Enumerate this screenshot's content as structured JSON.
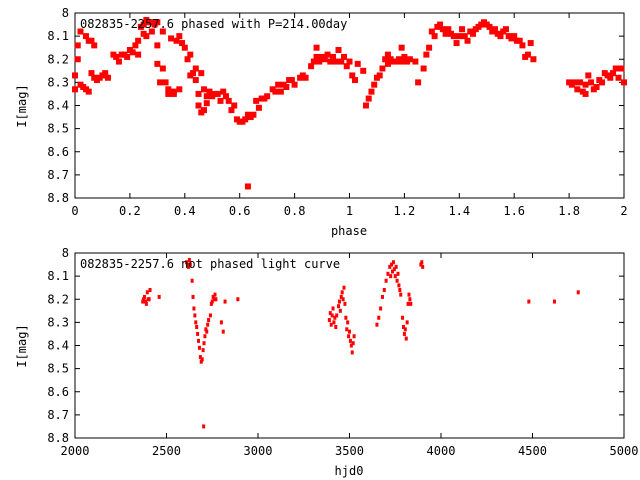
{
  "chart_data": [
    {
      "type": "scatter",
      "title": "082835-2257.6 phased with P=214.00day",
      "xlabel": "phase",
      "ylabel": "I[mag]",
      "xlim": [
        0,
        2
      ],
      "ylim": [
        8.8,
        8.0
      ],
      "y_inverted": true,
      "xticks": [
        "0",
        "0.2",
        "0.4",
        "0.6",
        "0.8",
        "1",
        "1.2",
        "1.4",
        "1.6",
        "1.8",
        "2"
      ],
      "xtick_values": [
        0,
        0.2,
        0.4,
        0.6,
        0.8,
        1.0,
        1.2,
        1.4,
        1.6,
        1.8,
        2.0
      ],
      "yticks": [
        "8",
        "8.1",
        "8.2",
        "8.3",
        "8.4",
        "8.5",
        "8.6",
        "8.7",
        "8.8"
      ],
      "ytick_values": [
        8.0,
        8.1,
        8.2,
        8.3,
        8.4,
        8.5,
        8.6,
        8.7,
        8.8
      ],
      "marker_color": "#ff0000",
      "marker": "filled-square",
      "points": [
        [
          0.0,
          8.27
        ],
        [
          0.0,
          8.33
        ],
        [
          0.01,
          8.2
        ],
        [
          0.01,
          8.14
        ],
        [
          0.02,
          8.08
        ],
        [
          0.02,
          8.31
        ],
        [
          0.03,
          8.32
        ],
        [
          0.04,
          8.1
        ],
        [
          0.04,
          8.33
        ],
        [
          0.05,
          8.12
        ],
        [
          0.05,
          8.34
        ],
        [
          0.06,
          8.12
        ],
        [
          0.06,
          8.26
        ],
        [
          0.07,
          8.14
        ],
        [
          0.07,
          8.28
        ],
        [
          0.08,
          8.29
        ],
        [
          0.09,
          8.28
        ],
        [
          0.1,
          8.27
        ],
        [
          0.11,
          8.26
        ],
        [
          0.12,
          8.28
        ],
        [
          0.14,
          8.18
        ],
        [
          0.15,
          8.19
        ],
        [
          0.16,
          8.21
        ],
        [
          0.17,
          8.18
        ],
        [
          0.18,
          8.18
        ],
        [
          0.19,
          8.19
        ],
        [
          0.2,
          8.16
        ],
        [
          0.21,
          8.17
        ],
        [
          0.22,
          8.14
        ],
        [
          0.23,
          8.12
        ],
        [
          0.23,
          8.18
        ],
        [
          0.24,
          8.06
        ],
        [
          0.25,
          8.05
        ],
        [
          0.25,
          8.09
        ],
        [
          0.26,
          8.03
        ],
        [
          0.26,
          8.1
        ],
        [
          0.27,
          8.04
        ],
        [
          0.28,
          8.04
        ],
        [
          0.28,
          8.08
        ],
        [
          0.29,
          8.05
        ],
        [
          0.3,
          8.04
        ],
        [
          0.3,
          8.14
        ],
        [
          0.3,
          8.22
        ],
        [
          0.31,
          8.3
        ],
        [
          0.32,
          8.24
        ],
        [
          0.32,
          8.08
        ],
        [
          0.33,
          8.3
        ],
        [
          0.34,
          8.33
        ],
        [
          0.34,
          8.35
        ],
        [
          0.35,
          8.11
        ],
        [
          0.36,
          8.35
        ],
        [
          0.36,
          8.34
        ],
        [
          0.37,
          8.12
        ],
        [
          0.38,
          8.1
        ],
        [
          0.38,
          8.33
        ],
        [
          0.39,
          8.13
        ],
        [
          0.4,
          8.15
        ],
        [
          0.41,
          8.2
        ],
        [
          0.42,
          8.27
        ],
        [
          0.42,
          8.18
        ],
        [
          0.43,
          8.26
        ],
        [
          0.44,
          8.24
        ],
        [
          0.44,
          8.29
        ],
        [
          0.45,
          8.35
        ],
        [
          0.45,
          8.4
        ],
        [
          0.46,
          8.43
        ],
        [
          0.46,
          8.26
        ],
        [
          0.47,
          8.33
        ],
        [
          0.47,
          8.42
        ],
        [
          0.48,
          8.36
        ],
        [
          0.48,
          8.39
        ],
        [
          0.49,
          8.34
        ],
        [
          0.5,
          8.36
        ],
        [
          0.51,
          8.35
        ],
        [
          0.52,
          8.35
        ],
        [
          0.53,
          8.38
        ],
        [
          0.54,
          8.34
        ],
        [
          0.55,
          8.36
        ],
        [
          0.56,
          8.38
        ],
        [
          0.57,
          8.42
        ],
        [
          0.58,
          8.4
        ],
        [
          0.59,
          8.46
        ],
        [
          0.6,
          8.47
        ],
        [
          0.61,
          8.47
        ],
        [
          0.62,
          8.46
        ],
        [
          0.63,
          8.44
        ],
        [
          0.63,
          8.75
        ],
        [
          0.64,
          8.45
        ],
        [
          0.65,
          8.44
        ],
        [
          0.66,
          8.38
        ],
        [
          0.67,
          8.41
        ],
        [
          0.68,
          8.37
        ],
        [
          0.69,
          8.37
        ],
        [
          0.7,
          8.36
        ],
        [
          0.72,
          8.33
        ],
        [
          0.73,
          8.34
        ],
        [
          0.74,
          8.31
        ],
        [
          0.75,
          8.34
        ],
        [
          0.76,
          8.31
        ],
        [
          0.77,
          8.32
        ],
        [
          0.78,
          8.29
        ],
        [
          0.79,
          8.29
        ],
        [
          0.8,
          8.31
        ],
        [
          0.82,
          8.28
        ],
        [
          0.83,
          8.27
        ],
        [
          0.84,
          8.28
        ],
        [
          0.86,
          8.23
        ],
        [
          0.87,
          8.21
        ],
        [
          0.88,
          8.19
        ],
        [
          0.88,
          8.15
        ],
        [
          0.89,
          8.21
        ],
        [
          0.9,
          8.19
        ],
        [
          0.91,
          8.2
        ],
        [
          0.92,
          8.18
        ],
        [
          0.93,
          8.21
        ],
        [
          0.94,
          8.19
        ],
        [
          0.95,
          8.21
        ],
        [
          0.96,
          8.16
        ],
        [
          0.97,
          8.21
        ],
        [
          0.98,
          8.19
        ],
        [
          0.99,
          8.23
        ],
        [
          1.0,
          8.21
        ],
        [
          1.01,
          8.27
        ],
        [
          1.02,
          8.29
        ],
        [
          1.03,
          8.22
        ],
        [
          1.05,
          8.25
        ],
        [
          1.06,
          8.4
        ],
        [
          1.07,
          8.37
        ],
        [
          1.08,
          8.34
        ],
        [
          1.09,
          8.31
        ],
        [
          1.1,
          8.28
        ],
        [
          1.11,
          8.27
        ],
        [
          1.12,
          8.24
        ],
        [
          1.13,
          8.2
        ],
        [
          1.14,
          8.18
        ],
        [
          1.14,
          8.22
        ],
        [
          1.15,
          8.2
        ],
        [
          1.16,
          8.21
        ],
        [
          1.17,
          8.21
        ],
        [
          1.18,
          8.2
        ],
        [
          1.19,
          8.21
        ],
        [
          1.19,
          8.15
        ],
        [
          1.2,
          8.19
        ],
        [
          1.21,
          8.21
        ],
        [
          1.22,
          8.2
        ],
        [
          1.24,
          8.21
        ],
        [
          1.25,
          8.3
        ],
        [
          1.27,
          8.24
        ],
        [
          1.28,
          8.18
        ],
        [
          1.29,
          8.15
        ],
        [
          1.3,
          8.08
        ],
        [
          1.31,
          8.1
        ],
        [
          1.32,
          8.06
        ],
        [
          1.33,
          8.05
        ],
        [
          1.34,
          8.07
        ],
        [
          1.35,
          8.09
        ],
        [
          1.36,
          8.07
        ],
        [
          1.37,
          8.09
        ],
        [
          1.38,
          8.1
        ],
        [
          1.39,
          8.13
        ],
        [
          1.4,
          8.1
        ],
        [
          1.41,
          8.07
        ],
        [
          1.42,
          8.1
        ],
        [
          1.43,
          8.12
        ],
        [
          1.44,
          8.08
        ],
        [
          1.45,
          8.09
        ],
        [
          1.46,
          8.07
        ],
        [
          1.47,
          8.06
        ],
        [
          1.48,
          8.05
        ],
        [
          1.49,
          8.04
        ],
        [
          1.5,
          8.05
        ],
        [
          1.51,
          8.06
        ],
        [
          1.52,
          8.08
        ],
        [
          1.53,
          8.07
        ],
        [
          1.54,
          8.09
        ],
        [
          1.55,
          8.1
        ],
        [
          1.56,
          8.08
        ],
        [
          1.57,
          8.07
        ],
        [
          1.58,
          8.1
        ],
        [
          1.59,
          8.11
        ],
        [
          1.6,
          8.1
        ],
        [
          1.61,
          8.12
        ],
        [
          1.62,
          8.12
        ],
        [
          1.63,
          8.14
        ],
        [
          1.64,
          8.19
        ],
        [
          1.65,
          8.18
        ],
        [
          1.66,
          8.13
        ],
        [
          1.67,
          8.2
        ],
        [
          1.8,
          8.3
        ],
        [
          1.81,
          8.31
        ],
        [
          1.82,
          8.3
        ],
        [
          1.83,
          8.33
        ],
        [
          1.84,
          8.3
        ],
        [
          1.85,
          8.34
        ],
        [
          1.86,
          8.31
        ],
        [
          1.86,
          8.35
        ],
        [
          1.87,
          8.27
        ],
        [
          1.88,
          8.3
        ],
        [
          1.89,
          8.33
        ],
        [
          1.9,
          8.32
        ],
        [
          1.91,
          8.29
        ],
        [
          1.92,
          8.3
        ],
        [
          1.93,
          8.26
        ],
        [
          1.94,
          8.27
        ],
        [
          1.95,
          8.28
        ],
        [
          1.96,
          8.26
        ],
        [
          1.97,
          8.24
        ],
        [
          1.98,
          8.28
        ],
        [
          1.99,
          8.24
        ],
        [
          2.0,
          8.3
        ]
      ]
    },
    {
      "type": "scatter",
      "title": "082835-2257.6 not phased light curve",
      "xlabel": "hjd0",
      "ylabel": "I[mag]",
      "xlim": [
        2000,
        5000
      ],
      "ylim": [
        8.8,
        8.0
      ],
      "y_inverted": true,
      "xticks": [
        "2000",
        "2500",
        "3000",
        "3500",
        "4000",
        "4500",
        "5000"
      ],
      "xtick_values": [
        2000,
        2500,
        3000,
        3500,
        4000,
        4500,
        5000
      ],
      "yticks": [
        "8",
        "8.1",
        "8.2",
        "8.3",
        "8.4",
        "8.5",
        "8.6",
        "8.7",
        "8.8"
      ],
      "ytick_values": [
        8.0,
        8.1,
        8.2,
        8.3,
        8.4,
        8.5,
        8.6,
        8.7,
        8.8
      ],
      "marker_color": "#ff0000",
      "marker": "small-dot",
      "points": [
        [
          2370,
          8.21
        ],
        [
          2375,
          8.2
        ],
        [
          2380,
          8.19
        ],
        [
          2385,
          8.21
        ],
        [
          2390,
          8.22
        ],
        [
          2395,
          8.17
        ],
        [
          2400,
          8.2
        ],
        [
          2405,
          8.2
        ],
        [
          2410,
          8.16
        ],
        [
          2460,
          8.19
        ],
        [
          2610,
          8.04
        ],
        [
          2615,
          8.05
        ],
        [
          2620,
          8.06
        ],
        [
          2625,
          8.03
        ],
        [
          2630,
          8.05
        ],
        [
          2640,
          8.12
        ],
        [
          2645,
          8.19
        ],
        [
          2650,
          8.24
        ],
        [
          2655,
          8.27
        ],
        [
          2660,
          8.3
        ],
        [
          2665,
          8.32
        ],
        [
          2670,
          8.35
        ],
        [
          2675,
          8.38
        ],
        [
          2680,
          8.41
        ],
        [
          2685,
          8.45
        ],
        [
          2690,
          8.47
        ],
        [
          2695,
          8.46
        ],
        [
          2700,
          8.42
        ],
        [
          2703,
          8.75
        ],
        [
          2705,
          8.39
        ],
        [
          2710,
          8.36
        ],
        [
          2715,
          8.33
        ],
        [
          2720,
          8.34
        ],
        [
          2725,
          8.31
        ],
        [
          2730,
          8.29
        ],
        [
          2740,
          8.27
        ],
        [
          2745,
          8.22
        ],
        [
          2750,
          8.21
        ],
        [
          2755,
          8.19
        ],
        [
          2760,
          8.2
        ],
        [
          2765,
          8.18
        ],
        [
          2770,
          8.2
        ],
        [
          2800,
          8.3
        ],
        [
          2810,
          8.34
        ],
        [
          2820,
          8.21
        ],
        [
          2890,
          8.2
        ],
        [
          3390,
          8.29
        ],
        [
          3395,
          8.26
        ],
        [
          3400,
          8.31
        ],
        [
          3405,
          8.27
        ],
        [
          3410,
          8.24
        ],
        [
          3415,
          8.3
        ],
        [
          3420,
          8.28
        ],
        [
          3425,
          8.32
        ],
        [
          3430,
          8.27
        ],
        [
          3440,
          8.23
        ],
        [
          3445,
          8.21
        ],
        [
          3450,
          8.25
        ],
        [
          3455,
          8.19
        ],
        [
          3460,
          8.17
        ],
        [
          3465,
          8.2
        ],
        [
          3470,
          8.15
        ],
        [
          3475,
          8.22
        ],
        [
          3480,
          8.28
        ],
        [
          3485,
          8.33
        ],
        [
          3490,
          8.3
        ],
        [
          3495,
          8.36
        ],
        [
          3500,
          8.34
        ],
        [
          3505,
          8.38
        ],
        [
          3510,
          8.4
        ],
        [
          3515,
          8.43
        ],
        [
          3520,
          8.39
        ],
        [
          3525,
          8.36
        ],
        [
          3650,
          8.31
        ],
        [
          3660,
          8.28
        ],
        [
          3670,
          8.24
        ],
        [
          3680,
          8.19
        ],
        [
          3690,
          8.16
        ],
        [
          3700,
          8.12
        ],
        [
          3710,
          8.09
        ],
        [
          3720,
          8.06
        ],
        [
          3725,
          8.1
        ],
        [
          3730,
          8.05
        ],
        [
          3735,
          8.08
        ],
        [
          3740,
          8.04
        ],
        [
          3745,
          8.07
        ],
        [
          3750,
          8.1
        ],
        [
          3755,
          8.06
        ],
        [
          3760,
          8.12
        ],
        [
          3765,
          8.09
        ],
        [
          3770,
          8.14
        ],
        [
          3775,
          8.16
        ],
        [
          3780,
          8.18
        ],
        [
          3790,
          8.28
        ],
        [
          3795,
          8.32
        ],
        [
          3800,
          8.35
        ],
        [
          3805,
          8.33
        ],
        [
          3810,
          8.37
        ],
        [
          3815,
          8.3
        ],
        [
          3820,
          8.22
        ],
        [
          3825,
          8.18
        ],
        [
          3830,
          8.2
        ],
        [
          3835,
          8.22
        ],
        [
          3890,
          8.05
        ],
        [
          3895,
          8.04
        ],
        [
          3900,
          8.06
        ],
        [
          4480,
          8.21
        ],
        [
          4620,
          8.21
        ],
        [
          4750,
          8.17
        ]
      ]
    }
  ]
}
